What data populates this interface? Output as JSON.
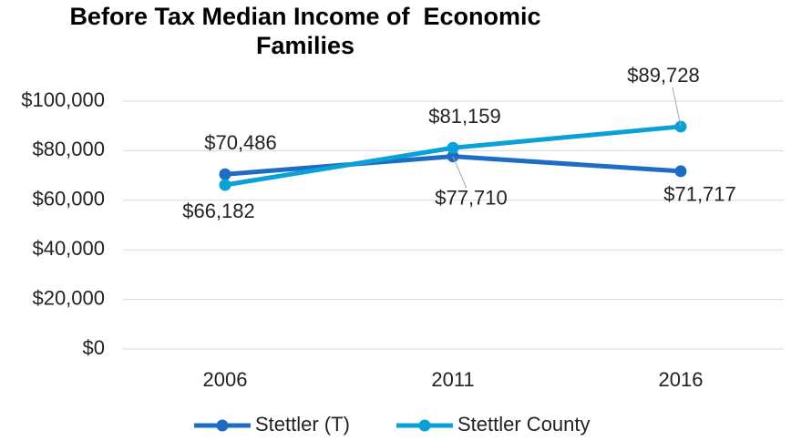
{
  "chart_data": {
    "type": "line",
    "title": "Before Tax Median Income of  Economic Families",
    "categories": [
      "2006",
      "2011",
      "2016"
    ],
    "series": [
      {
        "name": "Stettler (T)",
        "color": "#1f6cc4",
        "values": [
          70486,
          77710,
          71717
        ],
        "value_labels": [
          "$70,486",
          "$77,710",
          "$71,717"
        ]
      },
      {
        "name": "Stettler County",
        "color": "#0aa0d8",
        "values": [
          66182,
          81159,
          89728
        ],
        "value_labels": [
          "$66,182",
          "$81,159",
          "$89,728"
        ]
      }
    ],
    "ylim": [
      0,
      100000
    ],
    "yticks": [
      {
        "value": 0,
        "label": "$0"
      },
      {
        "value": 20000,
        "label": "$20,000"
      },
      {
        "value": 40000,
        "label": "$40,000"
      },
      {
        "value": 60000,
        "label": "$60,000"
      },
      {
        "value": 80000,
        "label": "$80,000"
      },
      {
        "value": 100000,
        "label": "$100,000"
      }
    ],
    "grid": true,
    "legend": "bottom"
  }
}
